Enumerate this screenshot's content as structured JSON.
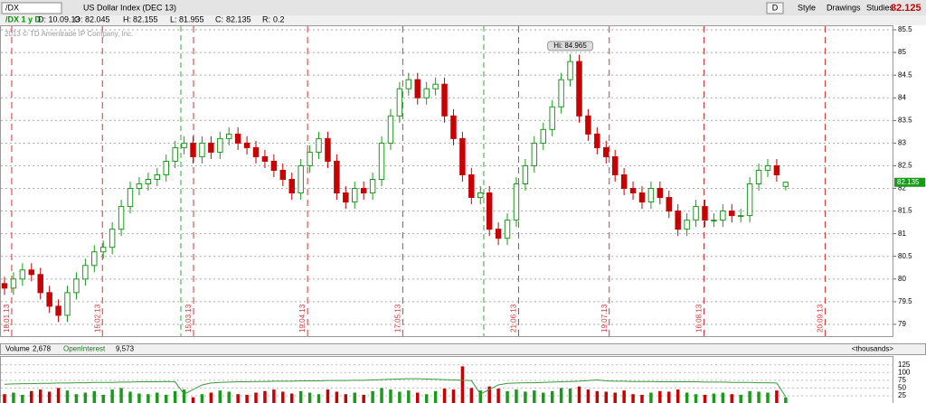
{
  "toolbar": {
    "symbol": "/DX",
    "description": "US Dollar Index (DEC 13)",
    "period": "D",
    "style": "Style",
    "drawings": "Drawings",
    "studies": "Studies",
    "last": 82.125
  },
  "info_bar": {
    "chart_label": "/DX 1 y D",
    "date": "D: 10.09.13",
    "open": "O:",
    "high": "H:",
    "low": "L:",
    "close": "C:",
    "range": "R:",
    "range_value": 0.2
  },
  "copyright": "2013 © TD Ameritrade IP Company, Inc.",
  "chart_data": [
    {
      "type": "candlestick",
      "up_color": "#1a9a1a",
      "down_color": "#c80000",
      "x": [
        0,
        2,
        4,
        6,
        8,
        10,
        12,
        14,
        16,
        18,
        20,
        22,
        24,
        26,
        28,
        30,
        32,
        34,
        36,
        38,
        40,
        42,
        44,
        46,
        48,
        50,
        52,
        54,
        56,
        58,
        60,
        62,
        64,
        66,
        68,
        70,
        72,
        74,
        76,
        78,
        80,
        82,
        84,
        86,
        88,
        90,
        92,
        94,
        96,
        98,
        100,
        102,
        104,
        106,
        108,
        110,
        112,
        114,
        116,
        118,
        120,
        122,
        124,
        126,
        128,
        130,
        132,
        134,
        136,
        138,
        140,
        142,
        144,
        146,
        148,
        150,
        152,
        154,
        156,
        158,
        160,
        162,
        164,
        166,
        168,
        170,
        172,
        174
      ],
      "open": [
        79.9,
        79.8,
        80.0,
        80.2,
        80.1,
        79.7,
        79.4,
        79.2,
        79.7,
        80.0,
        80.3,
        80.6,
        80.7,
        81.1,
        81.6,
        82.0,
        82.1,
        82.2,
        82.3,
        82.6,
        82.9,
        83.0,
        82.7,
        83.0,
        82.8,
        83.1,
        83.2,
        83.0,
        82.9,
        82.7,
        82.6,
        82.4,
        82.2,
        81.9,
        82.5,
        82.8,
        83.1,
        82.6,
        81.9,
        81.7,
        82.0,
        81.9,
        82.2,
        83.0,
        83.6,
        84.2,
        84.4,
        84.0,
        84.2,
        84.3,
        83.6,
        83.1,
        82.3,
        81.8,
        81.9,
        81.1,
        80.9,
        81.3,
        82.1,
        82.5,
        83.0,
        83.3,
        83.8,
        84.4,
        84.8,
        83.6,
        83.2,
        82.9,
        82.7,
        82.3,
        82.0,
        81.9,
        81.7,
        82.0,
        81.8,
        81.5,
        81.1,
        81.3,
        81.6,
        81.3,
        81.3,
        81.5,
        81.4,
        81.4,
        82.1,
        82.4,
        82.5,
        82.045
      ],
      "high": [
        80.05,
        80.15,
        80.35,
        80.35,
        80.25,
        79.85,
        79.55,
        79.85,
        80.15,
        80.45,
        80.75,
        80.85,
        81.25,
        81.75,
        82.15,
        82.25,
        82.35,
        82.45,
        82.75,
        83.05,
        83.15,
        83.15,
        83.15,
        83.15,
        83.25,
        83.35,
        83.35,
        83.15,
        83.05,
        82.85,
        82.75,
        82.55,
        82.35,
        82.65,
        82.95,
        83.25,
        83.25,
        82.75,
        82.05,
        82.15,
        82.15,
        82.35,
        83.15,
        83.75,
        84.35,
        84.55,
        84.55,
        84.35,
        84.45,
        84.45,
        83.75,
        83.25,
        82.45,
        82.05,
        82.05,
        81.25,
        81.45,
        82.25,
        82.65,
        83.15,
        83.45,
        83.95,
        84.55,
        84.965,
        84.95,
        83.75,
        83.35,
        83.05,
        82.85,
        82.45,
        82.15,
        82.05,
        82.15,
        82.15,
        81.95,
        81.65,
        81.45,
        81.75,
        81.75,
        81.45,
        81.65,
        81.65,
        81.55,
        82.25,
        82.55,
        82.65,
        82.65,
        82.155
      ],
      "low": [
        79.65,
        79.65,
        79.85,
        79.95,
        79.55,
        79.25,
        79.05,
        79.05,
        79.55,
        79.85,
        80.15,
        80.45,
        80.55,
        80.95,
        81.45,
        81.85,
        81.95,
        82.05,
        82.15,
        82.45,
        82.75,
        82.55,
        82.55,
        82.65,
        82.65,
        82.95,
        82.85,
        82.75,
        82.55,
        82.45,
        82.25,
        82.05,
        81.75,
        81.75,
        82.35,
        82.65,
        82.45,
        81.75,
        81.55,
        81.55,
        81.75,
        81.75,
        82.05,
        82.85,
        83.45,
        84.05,
        83.85,
        83.85,
        84.05,
        83.45,
        82.95,
        82.15,
        81.65,
        81.65,
        80.95,
        80.75,
        80.75,
        81.15,
        81.95,
        82.35,
        82.85,
        83.15,
        83.65,
        84.25,
        83.45,
        83.05,
        82.75,
        82.55,
        82.15,
        81.85,
        81.75,
        81.55,
        81.55,
        81.65,
        81.35,
        80.95,
        80.95,
        81.15,
        81.15,
        81.15,
        81.15,
        81.25,
        81.25,
        81.25,
        81.95,
        82.25,
        82.15,
        81.955
      ],
      "close": [
        79.8,
        80.0,
        80.2,
        80.1,
        79.7,
        79.4,
        79.2,
        79.7,
        80.0,
        80.3,
        80.6,
        80.7,
        81.1,
        81.6,
        82.0,
        82.1,
        82.2,
        82.3,
        82.6,
        82.9,
        83.0,
        82.7,
        83.0,
        82.8,
        83.1,
        83.2,
        83.0,
        82.9,
        82.7,
        82.6,
        82.4,
        82.2,
        81.9,
        82.5,
        82.8,
        83.1,
        82.6,
        81.9,
        81.7,
        82.0,
        81.9,
        82.2,
        83.0,
        83.6,
        84.2,
        84.4,
        84.0,
        84.2,
        84.3,
        83.6,
        83.1,
        82.3,
        81.8,
        81.9,
        81.1,
        80.9,
        81.3,
        82.1,
        82.5,
        83.0,
        83.3,
        83.8,
        84.4,
        84.8,
        83.6,
        83.2,
        82.9,
        82.7,
        82.3,
        82.0,
        81.9,
        81.7,
        82.0,
        81.8,
        81.5,
        81.1,
        81.3,
        81.6,
        81.3,
        81.3,
        81.5,
        81.4,
        81.4,
        82.1,
        82.4,
        82.5,
        82.3,
        82.135
      ],
      "xlim": [
        0,
        198
      ],
      "xticks": [
        {
          "value": 1.6,
          "label": "18.01.13"
        },
        {
          "value": 21.8,
          "label": "15.02.13"
        },
        {
          "value": 42.1,
          "label": "15.03.13"
        },
        {
          "value": 67.5,
          "label": "19.04.13"
        },
        {
          "value": 88.7,
          "label": "17.05.13"
        },
        {
          "value": 114.5,
          "label": "21.06.13"
        },
        {
          "value": 134.7,
          "label": "19.07.13"
        },
        {
          "value": 155.8,
          "label": "16.08.13"
        },
        {
          "value": 182.8,
          "label": "20.09.13"
        }
      ],
      "ylim": [
        78.74,
        85.6
      ],
      "yticks": [
        79,
        79.5,
        80,
        80.5,
        81,
        81.5,
        82,
        82.5,
        83,
        83.5,
        84,
        84.5,
        85,
        85.5
      ],
      "grid": true,
      "annotation": {
        "label": "Hi:"
      }
    },
    {
      "type": "bar",
      "units": "<thousands>",
      "series": [
        {
          "name": "Volume",
          "current": "2,678",
          "values": [
            30,
            35,
            28,
            40,
            45,
            38,
            50,
            42,
            30,
            35,
            40,
            28,
            45,
            50,
            38,
            32,
            30,
            35,
            28,
            40,
            45,
            20,
            30,
            35,
            42,
            38,
            30,
            28,
            35,
            40,
            45,
            38,
            32,
            40,
            35,
            30,
            45,
            38,
            30,
            35,
            28,
            40,
            50,
            45,
            38,
            42,
            35,
            30,
            40,
            48,
            45,
            120,
            50,
            42,
            55,
            48,
            40,
            45,
            38,
            42,
            35,
            40,
            50,
            48,
            55,
            45,
            40,
            38,
            35,
            42,
            30,
            28,
            35,
            40,
            38,
            45,
            35,
            30,
            28,
            32,
            35,
            30,
            28,
            40,
            38,
            35,
            42,
            20
          ]
        },
        {
          "name": "OpenInterest",
          "current": "9,573",
          "color": "#3a9a3a",
          "values": [
            62,
            63,
            64,
            64,
            65,
            65,
            66,
            66,
            67,
            67,
            68,
            68,
            68,
            69,
            69,
            70,
            70,
            70,
            71,
            70,
            30,
            45,
            60,
            66,
            68,
            69,
            70,
            70,
            71,
            71,
            72,
            72,
            72,
            73,
            73,
            73,
            74,
            74,
            74,
            75,
            75,
            76,
            77,
            78,
            79,
            80,
            80,
            79,
            78,
            77,
            76,
            75,
            74,
            30,
            45,
            60,
            65,
            66,
            67,
            67,
            68,
            69,
            70,
            71,
            72,
            74,
            76,
            73,
            72,
            72,
            71,
            71,
            71,
            70,
            70,
            70,
            70,
            70,
            69,
            69,
            69,
            68,
            68,
            68,
            67,
            67,
            66,
            22
          ]
        }
      ],
      "ylim": [
        0,
        130
      ],
      "yticks": [
        25,
        50,
        75,
        100,
        125
      ]
    }
  ]
}
